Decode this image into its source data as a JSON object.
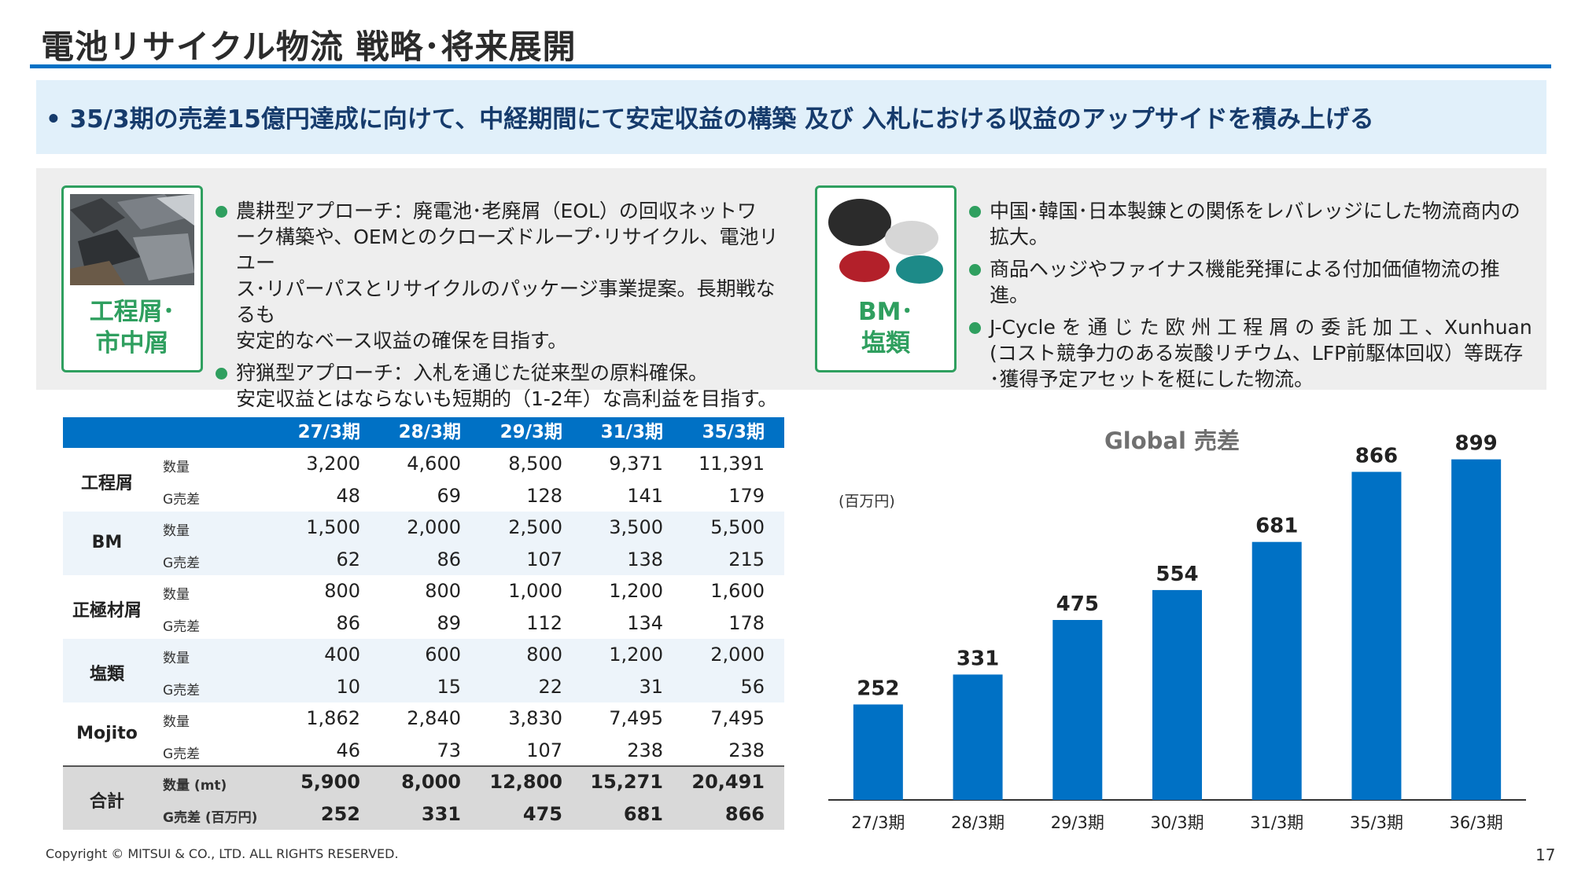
{
  "title": "電池リサイクル物流 戦略･将来展開",
  "lead": "• 35/3期の売差15億円達成に向けて、中経期間にて安定収益の構築 及び 入札における収益のアップサイドを積み上げる",
  "cards": [
    {
      "label_line1": "工程屑･",
      "label_line2": "市中屑",
      "bullets": [
        [
          "農耕型アプローチ：廃電池･老廃屑（EOL）の回収ネットワ",
          "ーク構築や、OEMとのクローズドループ･リサイクル、電池リユー",
          "ス･リパーパスとリサイクルのパッケージ事業提案。長期戦なるも",
          "安定的なベース収益の確保を目指す。"
        ],
        [
          "狩猟型アプローチ：入札を通じた従来型の原料確保。",
          "安定収益とはならないも短期的（1-2年）な高利益を目指す。"
        ]
      ]
    },
    {
      "label_line1": "BM･",
      "label_line2": "塩類",
      "bullets": [
        [
          "中国･韓国･日本製錬との関係をレバレッジにした物流商内の",
          "拡大。"
        ],
        [
          "商品ヘッジやファイナス機能発揮による付加価値物流の推進。"
        ],
        [
          "J-Cycle を 通 じ た 欧 州 工 程 屑 の 委 託 加 工 、Xunhuan",
          "(コスト競争力のある炭酸リチウム、LFP前駆体回収）等既存",
          "･獲得予定アセットを梃にした物流。"
        ]
      ]
    }
  ],
  "table": {
    "headers": [
      "27/3期",
      "28/3期",
      "29/3期",
      "31/3期",
      "35/3期"
    ],
    "groups": [
      {
        "name": "工程屑",
        "rows": [
          {
            "label": "数量",
            "values": [
              "3,200",
              "4,600",
              "8,500",
              "9,371",
              "11,391"
            ]
          },
          {
            "label": "G売差",
            "values": [
              "48",
              "69",
              "128",
              "141",
              "179"
            ]
          }
        ]
      },
      {
        "name": "BM",
        "rows": [
          {
            "label": "数量",
            "values": [
              "1,500",
              "2,000",
              "2,500",
              "3,500",
              "5,500"
            ]
          },
          {
            "label": "G売差",
            "values": [
              "62",
              "86",
              "107",
              "138",
              "215"
            ]
          }
        ]
      },
      {
        "name": "正極材屑",
        "rows": [
          {
            "label": "数量",
            "values": [
              "800",
              "800",
              "1,000",
              "1,200",
              "1,600"
            ]
          },
          {
            "label": "G売差",
            "values": [
              "86",
              "89",
              "112",
              "134",
              "178"
            ]
          }
        ]
      },
      {
        "name": "塩類",
        "rows": [
          {
            "label": "数量",
            "values": [
              "400",
              "600",
              "800",
              "1,200",
              "2,000"
            ]
          },
          {
            "label": "G売差",
            "values": [
              "10",
              "15",
              "22",
              "31",
              "56"
            ]
          }
        ]
      },
      {
        "name": "Mojito",
        "rows": [
          {
            "label": "数量",
            "values": [
              "1,862",
              "2,840",
              "3,830",
              "7,495",
              "7,495"
            ]
          },
          {
            "label": "G売差",
            "values": [
              "46",
              "73",
              "107",
              "238",
              "238"
            ]
          }
        ]
      },
      {
        "name": "合計",
        "rows": [
          {
            "label": "数量 (mt)",
            "values": [
              "5,900",
              "8,000",
              "12,800",
              "15,271",
              "20,491"
            ]
          },
          {
            "label": "G売差 (百万円)",
            "values": [
              "252",
              "331",
              "475",
              "681",
              "866"
            ]
          }
        ]
      }
    ]
  },
  "chart_data": {
    "type": "bar",
    "title": "Global 売差",
    "ylabel": "(百万円)",
    "categories": [
      "27/3期",
      "28/3期",
      "29/3期",
      "30/3期",
      "31/3期",
      "35/3期",
      "36/3期"
    ],
    "values": [
      252,
      331,
      475,
      554,
      681,
      866,
      899
    ],
    "ylim": [
      0,
      950
    ],
    "color": "#0071c5"
  },
  "footer": {
    "copyright": "Copyright © MITSUI & CO., LTD. ALL RIGHTS RESERVED.",
    "page": "17"
  },
  "colors": {
    "accent": "#0071c5",
    "green": "#2f9f5f",
    "lead_bg": "#e1f0fa"
  }
}
